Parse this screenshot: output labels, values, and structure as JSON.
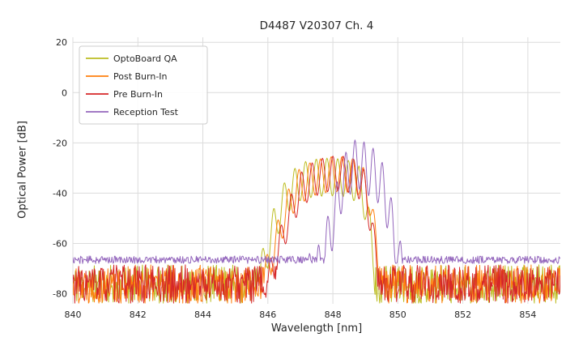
{
  "chart_data": {
    "type": "line",
    "title": "D4487 V20307 Ch. 4",
    "xlabel": "Wavelength [nm]",
    "ylabel": "Optical Power [dB]",
    "xlim": [
      840,
      855
    ],
    "ylim": [
      -84,
      22
    ],
    "xticks": [
      840,
      842,
      844,
      846,
      848,
      850,
      852,
      854
    ],
    "yticks": [
      20,
      0,
      -20,
      -40,
      -60,
      -80
    ],
    "grid": true,
    "grid_color": "#dcdcdc",
    "legend_position": "upper left",
    "sample_step_nm": 0.02,
    "series": [
      {
        "name": "OptoBoard QA",
        "color": "#bcbd22",
        "seed": 11,
        "noise": {
          "min": -84,
          "max": -68.5
        },
        "ripple": {
          "period": 0.33,
          "depth": 15,
          "phase": 0.05
        },
        "envelope": [
          [
            845.5,
            -74
          ],
          [
            845.9,
            -60
          ],
          [
            846.2,
            -45
          ],
          [
            846.6,
            -33
          ],
          [
            847.0,
            -28
          ],
          [
            847.4,
            -26.5
          ],
          [
            847.9,
            -26
          ],
          [
            848.4,
            -26.5
          ],
          [
            848.8,
            -29
          ],
          [
            849.05,
            -38
          ],
          [
            849.25,
            -60
          ],
          [
            849.4,
            -80
          ]
        ]
      },
      {
        "name": "Post Burn-In",
        "color": "#ff7f0e",
        "seed": 22,
        "noise": {
          "min": -84,
          "max": -68.5
        },
        "ripple": {
          "period": 0.33,
          "depth": 14,
          "phase": 0.18
        },
        "envelope": [
          [
            845.7,
            -74
          ],
          [
            846.1,
            -60
          ],
          [
            846.5,
            -42
          ],
          [
            846.9,
            -31
          ],
          [
            847.4,
            -27
          ],
          [
            847.9,
            -25.5
          ],
          [
            848.4,
            -25.5
          ],
          [
            848.8,
            -27
          ],
          [
            849.1,
            -33
          ],
          [
            849.35,
            -55
          ],
          [
            849.55,
            -80
          ]
        ]
      },
      {
        "name": "Pre Burn-In",
        "color": "#d62728",
        "seed": 33,
        "noise": {
          "min": -84,
          "max": -68.5
        },
        "ripple": {
          "period": 0.32,
          "depth": 14,
          "phase": 0.0
        },
        "envelope": [
          [
            845.8,
            -75
          ],
          [
            846.2,
            -62
          ],
          [
            846.6,
            -44
          ],
          [
            847.0,
            -32
          ],
          [
            847.4,
            -27.5
          ],
          [
            847.8,
            -25.5
          ],
          [
            848.2,
            -25
          ],
          [
            848.6,
            -26
          ],
          [
            848.95,
            -30
          ],
          [
            849.2,
            -45
          ],
          [
            849.45,
            -76
          ]
        ]
      },
      {
        "name": "Reception Test",
        "color": "#9467bd",
        "seed": 44,
        "noise": {
          "min": -68,
          "max": -65
        },
        "ripple": {
          "period": 0.28,
          "depth": 20,
          "phase": 0.0
        },
        "envelope": [
          [
            844.6,
            -67.5
          ],
          [
            845.3,
            -65.5
          ],
          [
            846.0,
            -66.5
          ],
          [
            847.0,
            -67.5
          ],
          [
            847.6,
            -60
          ],
          [
            848.0,
            -42
          ],
          [
            848.3,
            -26
          ],
          [
            848.6,
            -19
          ],
          [
            848.85,
            -18.5
          ],
          [
            849.1,
            -21
          ],
          [
            849.35,
            -23
          ],
          [
            849.6,
            -30
          ],
          [
            849.85,
            -45
          ],
          [
            850.05,
            -58
          ],
          [
            850.3,
            -66.5
          ]
        ]
      }
    ]
  }
}
